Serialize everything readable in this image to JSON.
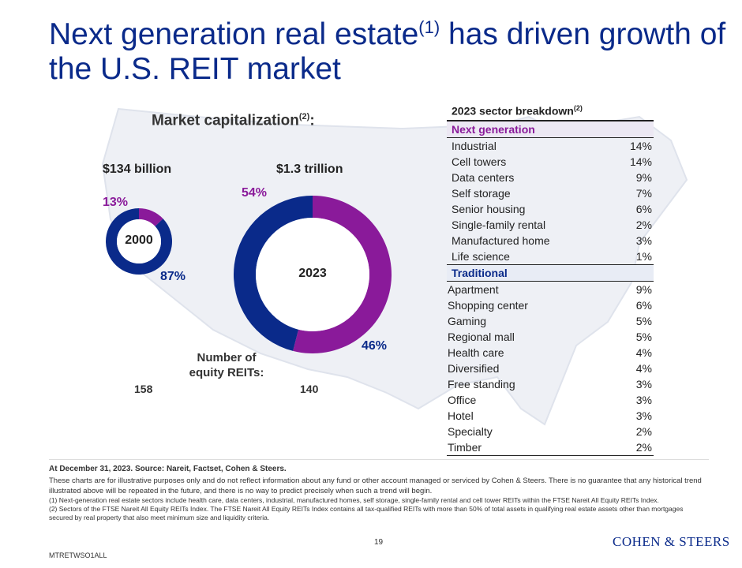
{
  "title": {
    "main": "Next generation real estate",
    "sup": "(1)",
    "rest": " has driven growth of the U.S. REIT market"
  },
  "market_cap": {
    "title": "Market capitalization",
    "title_sup": "(2)",
    "title_suffix": ":"
  },
  "donut_2000": {
    "value_label": "$134 billion",
    "center_label": "2000",
    "pct_next": "13%",
    "pct_trad": "87%"
  },
  "donut_2023": {
    "value_label": "$1.3 trillion",
    "center_label": "2023",
    "pct_next": "54%",
    "pct_trad": "46%"
  },
  "equity_reits": {
    "label": "Number of equity REITs:",
    "count_2000": "158",
    "count_2023": "140"
  },
  "colors": {
    "next_generation": "#8a1a9a",
    "traditional": "#0a2a8a",
    "title": "#0a2a8a",
    "map": "#eef0f5"
  },
  "chart_data": [
    {
      "type": "pie",
      "categories": [
        "Next generation",
        "Traditional"
      ],
      "values": [
        13,
        87
      ],
      "title": "2000",
      "donut": true
    },
    {
      "type": "pie",
      "categories": [
        "Next generation",
        "Traditional"
      ],
      "values": [
        54,
        46
      ],
      "title": "2023",
      "donut": true
    },
    {
      "type": "table",
      "title": "2023 sector breakdown",
      "title_sup": "(2)",
      "groups": [
        {
          "name": "Next generation",
          "rows": [
            {
              "sector": "Industrial",
              "value": "14%"
            },
            {
              "sector": "Cell towers",
              "value": "14%"
            },
            {
              "sector": "Data centers",
              "value": "9%"
            },
            {
              "sector": "Self storage",
              "value": "7%"
            },
            {
              "sector": "Senior housing",
              "value": "6%"
            },
            {
              "sector": "Single-family rental",
              "value": "2%"
            },
            {
              "sector": "Manufactured home",
              "value": "3%"
            },
            {
              "sector": "Life science",
              "value": "1%"
            }
          ]
        },
        {
          "name": "Traditional",
          "rows": [
            {
              "sector": "Apartment",
              "value": "9%"
            },
            {
              "sector": "Shopping center",
              "value": "6%"
            },
            {
              "sector": "Gaming",
              "value": "5%"
            },
            {
              "sector": "Regional mall",
              "value": "5%"
            },
            {
              "sector": "Health care",
              "value": "4%"
            },
            {
              "sector": "Diversified",
              "value": "4%"
            },
            {
              "sector": "Free standing",
              "value": "3%"
            },
            {
              "sector": "Office",
              "value": "3%"
            },
            {
              "sector": "Hotel",
              "value": "3%"
            },
            {
              "sector": "Specialty",
              "value": "2%"
            },
            {
              "sector": "Timber",
              "value": "2%"
            }
          ]
        }
      ]
    }
  ],
  "footer": {
    "source": "At December 31, 2023. Source: Nareit, Factset, Cohen & Steers.",
    "disclaimer": "These charts are for illustrative purposes only and do not reflect information about any fund or other account managed or serviced by Cohen & Steers. There is no guarantee that any historical trend illustrated above will be repeated in the future, and there is no way to predict precisely when such a trend will begin.",
    "note1": "(1) Next-generation real estate sectors include health care, data centers, industrial, manufactured homes, self storage, single-family rental and cell tower REITs within the FTSE Nareit All Equity REITs Index.",
    "note2": "(2) Sectors of the FTSE Nareit All Equity REITs Index. The FTSE Nareit All Equity REITs Index contains all tax-qualified REITs with more than 50% of total assets in qualifying real estate assets other than mortgages secured by real property that also meet minimum size and liquidity criteria.",
    "page_number": "19",
    "logo": "COHEN & STEERS",
    "code": "MTRETWSO1ALL"
  }
}
